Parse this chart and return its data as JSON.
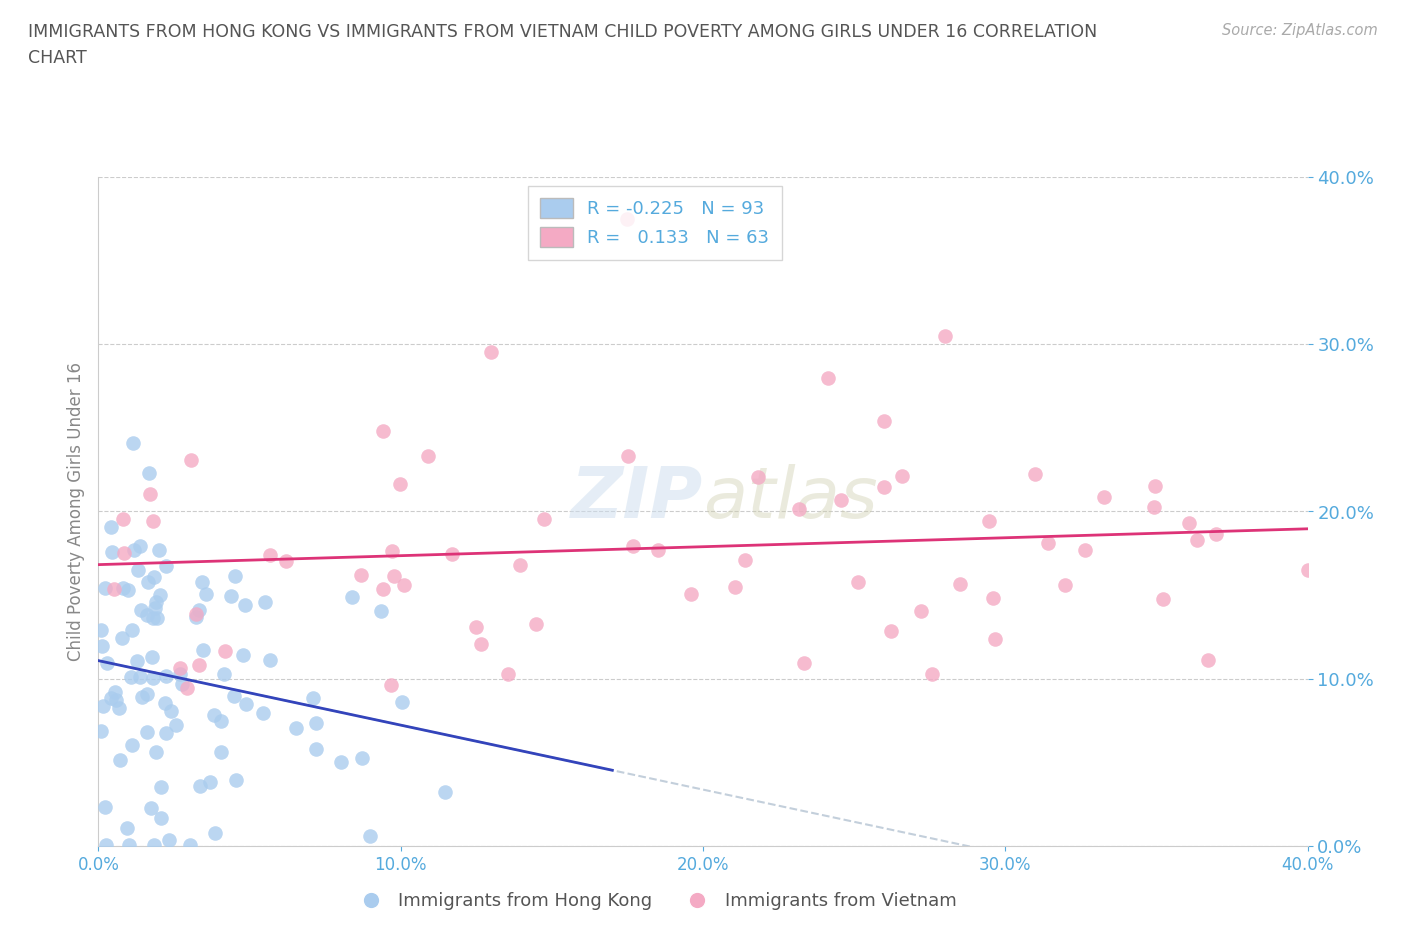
{
  "title_line1": "IMMIGRANTS FROM HONG KONG VS IMMIGRANTS FROM VIETNAM CHILD POVERTY AMONG GIRLS UNDER 16 CORRELATION",
  "title_line2": "CHART",
  "source": "Source: ZipAtlas.com",
  "ylabel": "Child Poverty Among Girls Under 16",
  "legend_entry1": "R = -0.225   N = 93",
  "legend_entry2": "R =   0.133   N = 63",
  "legend_label1": "Immigrants from Hong Kong",
  "legend_label2": "Immigrants from Vietnam",
  "hk_color": "#aaccee",
  "vn_color": "#f4aac4",
  "hk_line_color": "#3344bb",
  "vn_line_color": "#dd3377",
  "hk_dash_color": "#aabbcc",
  "background_color": "#ffffff",
  "grid_color": "#cccccc",
  "title_color": "#555555",
  "source_color": "#aaaaaa",
  "axis_label_color": "#888888",
  "tick_color": "#55aadd",
  "watermark_color": "#dddddd",
  "xlim": [
    0.0,
    0.4
  ],
  "ylim": [
    0.0,
    0.4
  ],
  "ytick_values": [
    0.0,
    0.1,
    0.2,
    0.3,
    0.4
  ],
  "xtick_values": [
    0.0,
    0.1,
    0.2,
    0.3,
    0.4
  ]
}
